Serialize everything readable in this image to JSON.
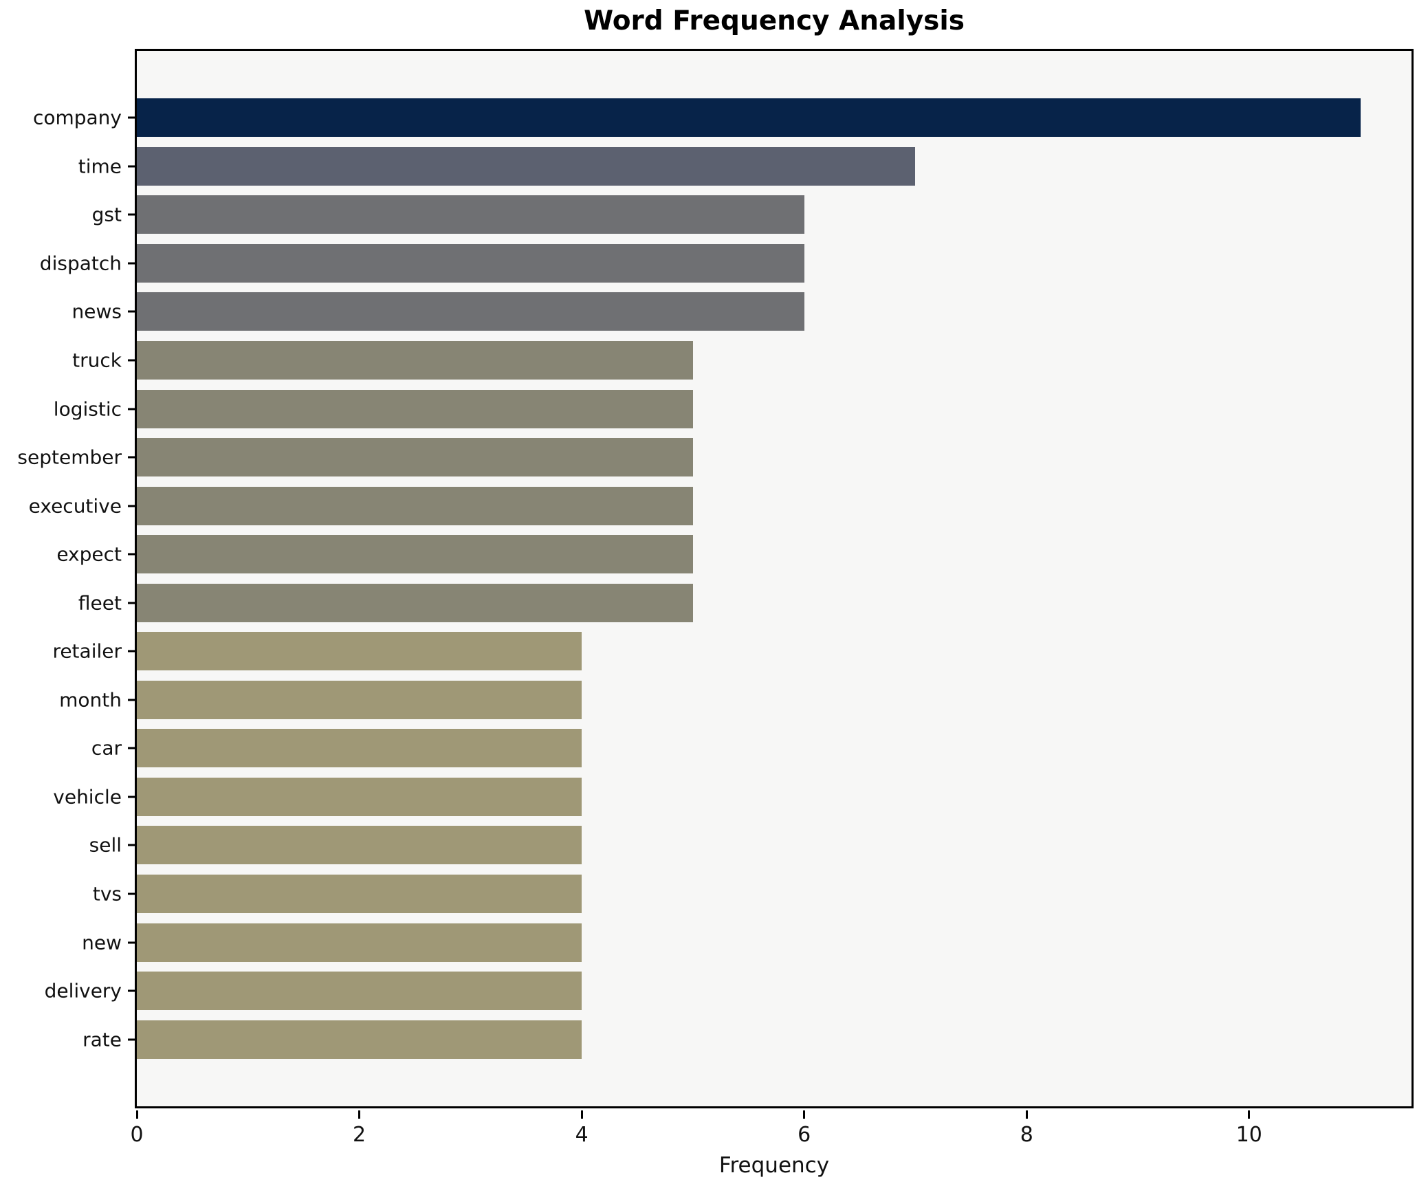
{
  "figure": {
    "title": "Word Frequency Analysis",
    "xlabel": "Frequency",
    "background_color": "#ffffff",
    "plot_background_color": "#f7f7f6",
    "spine_color": "#000000"
  },
  "chart_data": {
    "type": "bar",
    "orientation": "horizontal",
    "title": "Word Frequency Analysis",
    "xlabel": "Frequency",
    "ylabel": "",
    "grid": false,
    "legend": false,
    "xlim": [
      0,
      11.46
    ],
    "xticks": [
      0,
      2,
      4,
      6,
      8,
      10
    ],
    "categories": [
      "company",
      "time",
      "gst",
      "dispatch",
      "news",
      "truck",
      "logistic",
      "september",
      "executive",
      "expect",
      "fleet",
      "retailer",
      "month",
      "car",
      "vehicle",
      "sell",
      "tvs",
      "new",
      "delivery",
      "rate"
    ],
    "values": [
      11,
      7,
      6,
      6,
      6,
      5,
      5,
      5,
      5,
      5,
      5,
      4,
      4,
      4,
      4,
      4,
      4,
      4,
      4,
      4
    ],
    "bar_colors": [
      "#072349",
      "#5c6170",
      "#6f7073",
      "#6f7073",
      "#6f7073",
      "#878574",
      "#878574",
      "#878574",
      "#878574",
      "#878574",
      "#878574",
      "#9f9876",
      "#9f9876",
      "#9f9876",
      "#9f9876",
      "#9f9876",
      "#9f9876",
      "#9f9876",
      "#9f9876",
      "#9f9876"
    ]
  }
}
